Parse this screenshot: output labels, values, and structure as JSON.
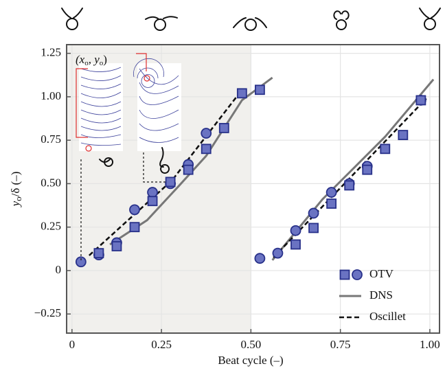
{
  "chart_data": {
    "type": "scatter",
    "ylabel": {
      "parts": [
        "y",
        "o",
        "/δ (–)"
      ]
    },
    "xlabel": "Beat cycle (–)",
    "inset_label": [
      "(x",
      "o",
      ", y",
      "o",
      ")"
    ],
    "xlim": [
      -0.015,
      1.027
    ],
    "ylim": [
      -0.36,
      1.3
    ],
    "xticks": [
      0,
      0.25,
      {
        "value": 0.5,
        "label": "0.50"
      },
      0.75,
      {
        "value": 1,
        "label": "1.00"
      }
    ],
    "yticks": [
      {
        "value": -0.25,
        "label": "−0.25"
      },
      0,
      0.25,
      {
        "value": 0.5,
        "label": "0.50"
      },
      0.75,
      {
        "value": 1,
        "label": "1.00"
      },
      1.25
    ],
    "grid": true,
    "shaded_span": [
      -0.015,
      0.5
    ],
    "shade_color": "#f1f0ed",
    "legend": "lower right",
    "series": [
      {
        "name": "OTV",
        "type": "scatter",
        "marker": "circle",
        "color": "#6a73c2",
        "edgecolor": "#28318a",
        "x": [
          0.025,
          0.075,
          0.125,
          0.175,
          0.225,
          0.275,
          0.325,
          0.375,
          0.525,
          0.575,
          0.625,
          0.675,
          0.725,
          0.775,
          0.825,
          0.975
        ],
        "values": [
          0.05,
          0.09,
          0.16,
          0.35,
          0.45,
          0.5,
          0.61,
          0.79,
          0.07,
          0.1,
          0.23,
          0.33,
          0.45,
          0.5,
          0.6,
          0.98
        ]
      },
      {
        "type": "scatter",
        "marker": "square",
        "color": "#6a73c2",
        "edgecolor": "#28318a",
        "x": [
          0.075,
          0.125,
          0.175,
          0.225,
          0.275,
          0.325,
          0.375,
          0.425,
          0.475,
          0.525,
          0.625,
          0.675,
          0.725,
          0.775,
          0.825,
          0.875,
          0.925,
          0.975
        ],
        "values": [
          0.1,
          0.14,
          0.25,
          0.4,
          0.51,
          0.58,
          0.7,
          0.82,
          1.02,
          1.04,
          0.15,
          0.245,
          0.385,
          0.49,
          0.58,
          0.7,
          0.78,
          0.98
        ]
      },
      {
        "name": "DNS",
        "type": "line",
        "color": "#777777",
        "x": [
          0.106,
          0.21,
          0.3,
          0.375,
          0.475,
          0.56,
          null,
          0.56,
          0.7,
          0.875,
          1.01
        ],
        "values": [
          0.15,
          0.29,
          0.49,
          0.66,
          0.98,
          1.11,
          null,
          0.06,
          0.41,
          0.77,
          1.1
        ]
      },
      {
        "name": "Oscillet",
        "type": "line",
        "dashed": true,
        "color": "#111111",
        "x": [
          0.048,
          0.28,
          0.475,
          null,
          0.563,
          0.99
        ],
        "values": [
          0.087,
          0.52,
          1.04,
          null,
          0.075,
          0.99
        ]
      }
    ]
  }
}
